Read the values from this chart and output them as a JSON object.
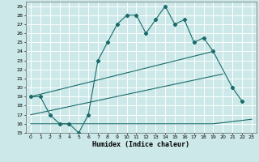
{
  "title": "",
  "xlabel": "Humidex (Indice chaleur)",
  "bg_color": "#cce8e8",
  "grid_color": "#ffffff",
  "line_color": "#1a6b6b",
  "xlim": [
    -0.5,
    23.5
  ],
  "ylim": [
    15,
    29.5
  ],
  "xticks": [
    0,
    1,
    2,
    3,
    4,
    5,
    6,
    7,
    8,
    9,
    10,
    11,
    12,
    13,
    14,
    15,
    16,
    17,
    18,
    19,
    20,
    21,
    22,
    23
  ],
  "yticks": [
    15,
    16,
    17,
    18,
    19,
    20,
    21,
    22,
    23,
    24,
    25,
    26,
    27,
    28,
    29
  ],
  "line1_x": [
    0,
    1,
    2,
    3,
    4,
    5,
    6,
    7,
    8,
    9,
    10,
    11,
    12,
    13,
    14,
    15,
    16,
    17,
    18,
    19,
    21,
    22
  ],
  "line1_y": [
    19,
    19,
    17,
    16,
    16,
    15,
    17,
    23,
    25,
    27,
    28,
    28,
    26,
    27.5,
    29,
    27,
    27.5,
    25,
    25.5,
    24,
    20,
    18.5
  ],
  "line2_x": [
    0,
    19
  ],
  "line2_y": [
    19,
    24
  ],
  "line3_x": [
    0,
    20
  ],
  "line3_y": [
    17,
    21.5
  ],
  "line4_x": [
    0,
    5,
    19,
    23
  ],
  "line4_y": [
    16,
    16,
    16,
    16.5
  ]
}
